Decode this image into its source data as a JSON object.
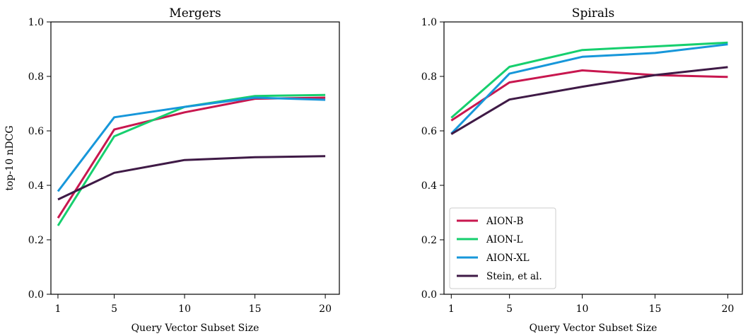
{
  "chart_data": [
    {
      "type": "line",
      "title": "Mergers",
      "xlabel": "Query Vector Subset Size",
      "ylabel": "top-10 nDCG",
      "x": [
        1,
        5,
        10,
        15,
        20
      ],
      "xticks": [
        1,
        5,
        10,
        15,
        20
      ],
      "xlim": [
        0.5,
        21
      ],
      "yticks": [
        "0.0",
        "0.2",
        "0.4",
        "0.6",
        "0.8",
        "1.0"
      ],
      "ylim": [
        0,
        1.0
      ],
      "grid": false,
      "legend": "none",
      "series": [
        {
          "name": "AION-B",
          "color": "#c8174f",
          "values": [
            0.28,
            0.605,
            0.668,
            0.718,
            0.722
          ]
        },
        {
          "name": "AION-L",
          "color": "#16cf6e",
          "values": [
            0.252,
            0.58,
            0.688,
            0.728,
            0.732
          ]
        },
        {
          "name": "AION-XL",
          "color": "#1797da",
          "values": [
            0.378,
            0.65,
            0.688,
            0.722,
            0.714
          ]
        },
        {
          "name": "Stein, et al.",
          "color": "#3f1a46",
          "values": [
            0.348,
            0.446,
            0.493,
            0.503,
            0.507
          ]
        }
      ]
    },
    {
      "type": "line",
      "title": "Spirals",
      "xlabel": "Query Vector Subset Size",
      "ylabel": "",
      "x": [
        1,
        5,
        10,
        15,
        20
      ],
      "xticks": [
        1,
        5,
        10,
        15,
        20
      ],
      "xlim": [
        0.5,
        21
      ],
      "yticks": [
        "0.0",
        "0.2",
        "0.4",
        "0.6",
        "0.8",
        "1.0"
      ],
      "ylim": [
        0,
        1.0
      ],
      "grid": false,
      "legend": "lower-left",
      "series": [
        {
          "name": "AION-B",
          "color": "#c8174f",
          "values": [
            0.638,
            0.778,
            0.822,
            0.805,
            0.798
          ]
        },
        {
          "name": "AION-L",
          "color": "#16cf6e",
          "values": [
            0.648,
            0.835,
            0.897,
            0.91,
            0.924
          ]
        },
        {
          "name": "AION-XL",
          "color": "#1797da",
          "values": [
            0.59,
            0.81,
            0.872,
            0.886,
            0.918
          ]
        },
        {
          "name": "Stein, et al.",
          "color": "#3f1a46",
          "values": [
            0.588,
            0.715,
            0.762,
            0.805,
            0.834
          ]
        }
      ]
    }
  ]
}
